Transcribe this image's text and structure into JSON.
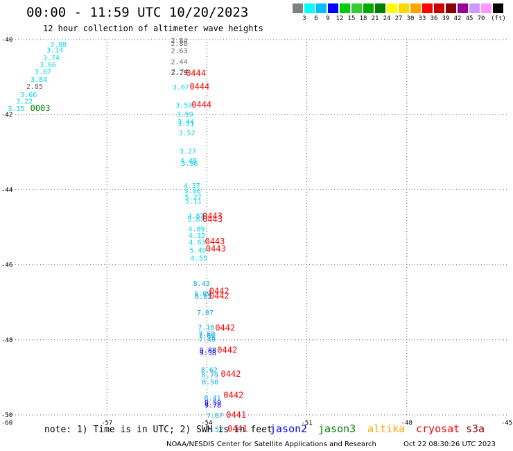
{
  "header": {
    "title": "00:00 - 11:59 UTC 10/20/2023",
    "subtitle": "12 hour collection of altimeter wave heights"
  },
  "legend": {
    "bins": [
      {
        "color": "#808080",
        "label": ""
      },
      {
        "color": "#00ffff",
        "label": "3"
      },
      {
        "color": "#00bfff",
        "label": "6"
      },
      {
        "color": "#0000ff",
        "label": "9"
      },
      {
        "color": "#00cc00",
        "label": "12"
      },
      {
        "color": "#33cc33",
        "label": "15"
      },
      {
        "color": "#00aa00",
        "label": "18"
      },
      {
        "color": "#008000",
        "label": "21"
      },
      {
        "color": "#ffff00",
        "label": "24"
      },
      {
        "color": "#ffd700",
        "label": "27"
      },
      {
        "color": "#ffa500",
        "label": "30"
      },
      {
        "color": "#ff0000",
        "label": "33"
      },
      {
        "color": "#cc0000",
        "label": "36"
      },
      {
        "color": "#8b0000",
        "label": "39"
      },
      {
        "color": "#990099",
        "label": "42"
      },
      {
        "color": "#cc99ff",
        "label": "45"
      },
      {
        "color": "#ff99ff",
        "label": "70"
      },
      {
        "color": "#000000",
        "label": ""
      }
    ],
    "unit": "(ft)"
  },
  "chart_data": {
    "type": "map",
    "xlim": [
      -60,
      -45
    ],
    "ylim": [
      -50,
      -40
    ],
    "x_ticks": [
      {
        "value": -60,
        "label": "-60"
      },
      {
        "value": -57,
        "label": "-57"
      },
      {
        "value": -54,
        "label": "-54"
      },
      {
        "value": -51,
        "label": "-51"
      },
      {
        "value": -48,
        "label": "-48"
      },
      {
        "value": -45,
        "label": "-45"
      }
    ],
    "y_ticks": [
      {
        "value": -40,
        "label": "-40"
      },
      {
        "value": -42,
        "label": "-42"
      },
      {
        "value": -44,
        "label": "-44"
      },
      {
        "value": -46,
        "label": "-46"
      },
      {
        "value": -48,
        "label": "-48"
      },
      {
        "value": -50,
        "label": "-50"
      }
    ],
    "grid": true,
    "track_a": {
      "satellite": "jason3",
      "points": [
        {
          "lon": -58.46,
          "lat": -40.12,
          "swh": "3.88"
        },
        {
          "lon": -58.56,
          "lat": -40.27,
          "swh": "3.14"
        },
        {
          "lon": -58.67,
          "lat": -40.47,
          "swh": "3.74"
        },
        {
          "lon": -58.77,
          "lat": -40.66,
          "swh": "3.66"
        },
        {
          "lon": -58.92,
          "lat": -40.85,
          "swh": "3.07"
        },
        {
          "lon": -59.04,
          "lat": -41.05,
          "swh": "3.84"
        },
        {
          "lon": -59.17,
          "lat": -41.24,
          "swh": "2.85"
        },
        {
          "lon": -59.35,
          "lat": -41.46,
          "swh": "3.66"
        },
        {
          "lon": -59.48,
          "lat": -41.64,
          "swh": "3.22"
        },
        {
          "lon": -59.72,
          "lat": -41.83,
          "swh": "3.15"
        }
      ],
      "time_labels": [
        {
          "lon": -59.0,
          "lat": -41.83,
          "text": "0003"
        }
      ]
    },
    "track_b": {
      "satellite": "cryosat",
      "points": [
        {
          "lon": -54.83,
          "lat": -40.02,
          "swh": "2.84"
        },
        {
          "lon": -54.83,
          "lat": -40.09,
          "swh": "2.88"
        },
        {
          "lon": -54.83,
          "lat": -40.29,
          "swh": "2.63"
        },
        {
          "lon": -54.83,
          "lat": -40.58,
          "swh": "2.44"
        },
        {
          "lon": -54.83,
          "lat": -40.87,
          "swh": "2.29"
        },
        {
          "lon": -54.81,
          "lat": -40.84,
          "swh": "2.74"
        },
        {
          "lon": -54.78,
          "lat": -41.26,
          "swh": "3.07"
        },
        {
          "lon": -54.69,
          "lat": -41.74,
          "swh": "3.59"
        },
        {
          "lon": -54.66,
          "lat": -41.98,
          "swh": "3.59"
        },
        {
          "lon": -54.63,
          "lat": -42.18,
          "swh": "3.44"
        },
        {
          "lon": -54.63,
          "lat": -42.24,
          "swh": "3.21"
        },
        {
          "lon": -54.6,
          "lat": -42.48,
          "swh": "3.52"
        },
        {
          "lon": -54.57,
          "lat": -42.97,
          "swh": "3.27"
        },
        {
          "lon": -54.55,
          "lat": -43.22,
          "swh": "4.48"
        },
        {
          "lon": -54.52,
          "lat": -43.29,
          "swh": "3.96"
        },
        {
          "lon": -54.45,
          "lat": -43.88,
          "swh": "4.37"
        },
        {
          "lon": -54.43,
          "lat": -44.02,
          "swh": "3.06"
        },
        {
          "lon": -54.41,
          "lat": -44.19,
          "swh": "5.27"
        },
        {
          "lon": -54.4,
          "lat": -44.3,
          "swh": "5.11"
        },
        {
          "lon": -54.33,
          "lat": -44.69,
          "swh": "4.87"
        },
        {
          "lon": -54.33,
          "lat": -44.78,
          "swh": "5.87"
        },
        {
          "lon": -54.31,
          "lat": -45.04,
          "swh": "4.89"
        },
        {
          "lon": -54.3,
          "lat": -45.21,
          "swh": "4.12"
        },
        {
          "lon": -54.29,
          "lat": -45.39,
          "swh": "4.63"
        },
        {
          "lon": -54.27,
          "lat": -45.6,
          "swh": "5.40"
        },
        {
          "lon": -54.24,
          "lat": -45.81,
          "swh": "4.55"
        },
        {
          "lon": -54.16,
          "lat": -46.49,
          "swh": "8.43"
        },
        {
          "lon": -54.13,
          "lat": -46.76,
          "swh": "6.09"
        },
        {
          "lon": -54.11,
          "lat": -46.84,
          "swh": "6.82"
        },
        {
          "lon": -54.05,
          "lat": -47.26,
          "swh": "7.07"
        },
        {
          "lon": -54.02,
          "lat": -47.65,
          "swh": "7.16"
        },
        {
          "lon": -54.0,
          "lat": -47.83,
          "swh": "7.60"
        },
        {
          "lon": -54.0,
          "lat": -47.88,
          "swh": "7.69"
        },
        {
          "lon": -53.99,
          "lat": -47.98,
          "swh": "7.49"
        },
        {
          "lon": -53.97,
          "lat": -48.26,
          "swh": "9.88"
        },
        {
          "lon": -53.97,
          "lat": -48.34,
          "swh": "9.58"
        },
        {
          "lon": -53.93,
          "lat": -48.79,
          "swh": "8.62"
        },
        {
          "lon": -53.91,
          "lat": -48.93,
          "swh": "8.79"
        },
        {
          "lon": -53.9,
          "lat": -49.11,
          "swh": "8.50"
        },
        {
          "lon": -53.83,
          "lat": -49.54,
          "swh": "8.41"
        },
        {
          "lon": -53.82,
          "lat": -49.66,
          "swh": "9.59"
        },
        {
          "lon": -53.82,
          "lat": -49.73,
          "swh": "9.78"
        },
        {
          "lon": -53.76,
          "lat": -50.0,
          "swh": "7.87"
        },
        {
          "lon": -53.76,
          "lat": -50.37,
          "swh": "7.52"
        }
      ],
      "time_labels": [
        {
          "lon": -54.33,
          "lat": -40.9,
          "text": "0444"
        },
        {
          "lon": -54.22,
          "lat": -41.26,
          "text": "0444"
        },
        {
          "lon": -54.16,
          "lat": -41.74,
          "text": "0444"
        },
        {
          "lon": -53.83,
          "lat": -44.7,
          "text": "0443"
        },
        {
          "lon": -53.83,
          "lat": -44.79,
          "text": "0443"
        },
        {
          "lon": -53.76,
          "lat": -45.38,
          "text": "0443"
        },
        {
          "lon": -53.73,
          "lat": -45.57,
          "text": "0443"
        },
        {
          "lon": -53.63,
          "lat": -46.7,
          "text": "0442"
        },
        {
          "lon": -53.63,
          "lat": -46.83,
          "text": "0442"
        },
        {
          "lon": -53.45,
          "lat": -47.68,
          "text": "0442"
        },
        {
          "lon": -53.39,
          "lat": -48.27,
          "text": "0442"
        },
        {
          "lon": -53.28,
          "lat": -48.91,
          "text": "0442"
        },
        {
          "lon": -53.2,
          "lat": -49.47,
          "text": "0442"
        },
        {
          "lon": -53.12,
          "lat": -50.0,
          "text": "0441"
        },
        {
          "lon": -53.08,
          "lat": -50.37,
          "text": "0441"
        }
      ]
    }
  },
  "footer": {
    "note": "note: 1) Time is in UTC; 2) SWH is in feet",
    "satellites": [
      {
        "name": "jason2",
        "color": "#0000ff"
      },
      {
        "name": "jason3",
        "color": "#008000"
      },
      {
        "name": "altika",
        "color": "#ffa500"
      },
      {
        "name": "cryosat",
        "color": "#ff0000"
      },
      {
        "name": "s3a",
        "color": "#8b0000"
      }
    ],
    "credit": "NOAA/NESDIS Center for Satellite Applications and Research",
    "timestamp": "Oct 22 08:30:26 UTC 2023"
  }
}
